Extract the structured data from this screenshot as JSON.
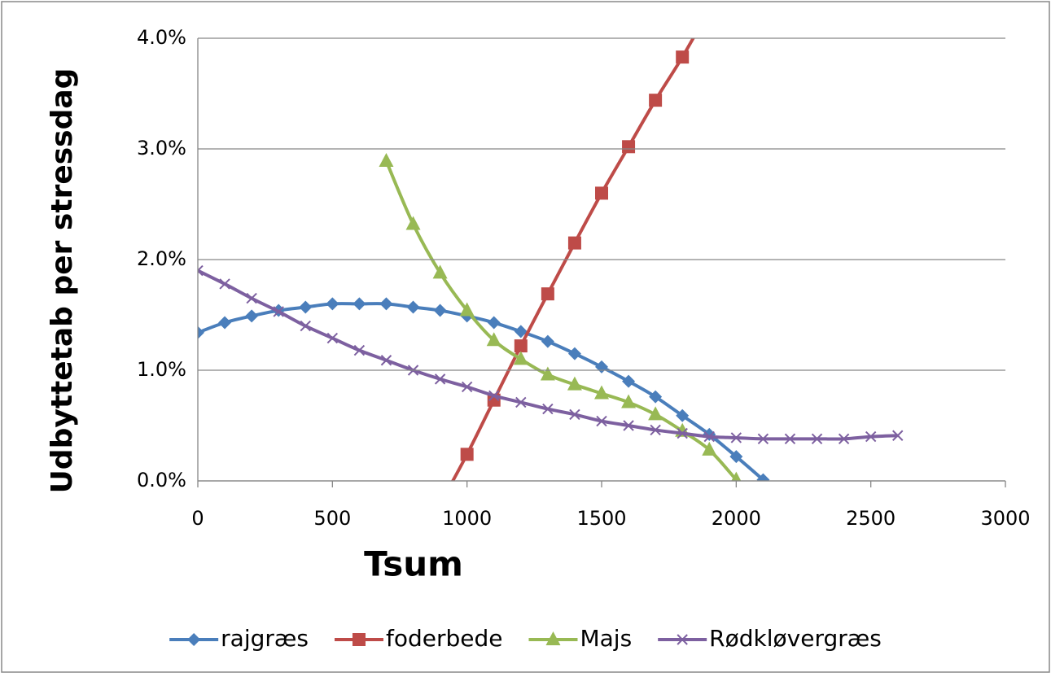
{
  "chart_data": {
    "type": "line",
    "x_label": "Tsum",
    "y_label": "Udbyttetab per stressdag",
    "xlim": [
      0,
      3000
    ],
    "xticks": [
      0,
      500,
      1000,
      1500,
      2000,
      2500,
      3000
    ],
    "ylim": [
      0,
      4
    ],
    "yticks": [
      {
        "value": 0,
        "label": "0.0%"
      },
      {
        "value": 1,
        "label": "1.0%"
      },
      {
        "value": 2,
        "label": "2.0%"
      },
      {
        "value": 3,
        "label": "3.0%"
      },
      {
        "value": 4,
        "label": "4.0%"
      }
    ],
    "grid": true,
    "legend": "bottom",
    "series": [
      {
        "name": "rajgræs",
        "color": "#4a7ebb",
        "marker": "diamond",
        "x": [
          0,
          100,
          200,
          300,
          400,
          500,
          600,
          700,
          800,
          900,
          1000,
          1100,
          1200,
          1300,
          1400,
          1500,
          1600,
          1700,
          1800,
          1900,
          2000,
          2100
        ],
        "values": [
          1.34,
          1.43,
          1.49,
          1.54,
          1.57,
          1.6,
          1.6,
          1.6,
          1.57,
          1.54,
          1.49,
          1.43,
          1.35,
          1.26,
          1.15,
          1.03,
          0.9,
          0.76,
          0.59,
          0.42,
          0.22,
          0.01
        ]
      },
      {
        "name": "foderbede",
        "color": "#be4b48",
        "marker": "square",
        "x": [
          900,
          1000,
          1100,
          1200,
          1300,
          1400,
          1500,
          1600,
          1700,
          1800,
          1900
        ],
        "values": [
          -0.21,
          0.24,
          0.73,
          1.22,
          1.69,
          2.15,
          2.6,
          3.02,
          3.44,
          3.83,
          4.26
        ]
      },
      {
        "name": "Majs",
        "color": "#98b954",
        "marker": "triangle",
        "x": [
          700,
          800,
          900,
          1000,
          1100,
          1200,
          1300,
          1400,
          1500,
          1600,
          1700,
          1800,
          1900,
          2000
        ],
        "values": [
          2.89,
          2.32,
          1.88,
          1.54,
          1.27,
          1.1,
          0.96,
          0.87,
          0.79,
          0.71,
          0.6,
          0.45,
          0.28,
          0.01
        ]
      },
      {
        "name": "Rødkløvergræs",
        "color": "#7d60a0",
        "marker": "x",
        "x": [
          0,
          100,
          200,
          300,
          400,
          500,
          600,
          700,
          800,
          900,
          1000,
          1100,
          1200,
          1300,
          1400,
          1500,
          1600,
          1700,
          1800,
          1900,
          2000,
          2100,
          2200,
          2300,
          2400,
          2500,
          2600
        ],
        "values": [
          1.9,
          1.78,
          1.65,
          1.53,
          1.4,
          1.29,
          1.18,
          1.09,
          1.0,
          0.92,
          0.85,
          0.77,
          0.71,
          0.65,
          0.6,
          0.54,
          0.5,
          0.46,
          0.43,
          0.4,
          0.39,
          0.38,
          0.38,
          0.38,
          0.38,
          0.4,
          0.41
        ]
      }
    ]
  }
}
